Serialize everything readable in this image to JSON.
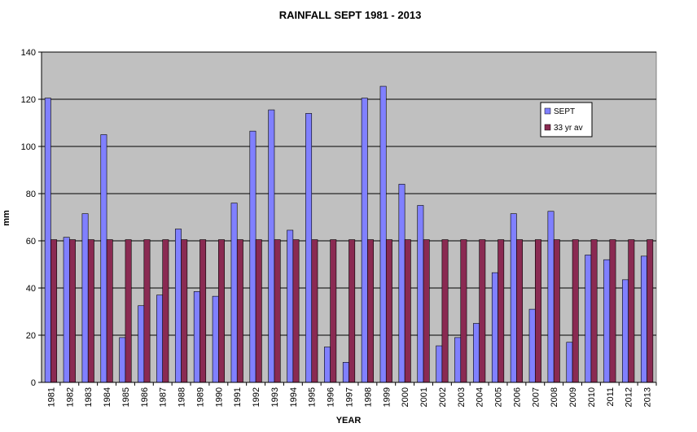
{
  "chart_data": {
    "type": "bar",
    "title": "RAINFALL SEPT 1981 - 2013",
    "xlabel": "YEAR",
    "ylabel": "mm",
    "ylim": [
      0,
      140
    ],
    "yticks": [
      "0",
      "20",
      "40",
      "60",
      "80",
      "100",
      "120",
      "140"
    ],
    "grid": true,
    "legend_position": "top-right",
    "categories": [
      "1981",
      "1982",
      "1983",
      "1984",
      "1985",
      "1986",
      "1987",
      "1988",
      "1989",
      "1990",
      "1991",
      "1992",
      "1993",
      "1994",
      "1995",
      "1996",
      "1997",
      "1998",
      "1999",
      "2000",
      "2001",
      "2002",
      "2003",
      "2004",
      "2005",
      "2006",
      "2007",
      "2008",
      "2009",
      "2010",
      "2011",
      "2012",
      "2013"
    ],
    "series": [
      {
        "name": "SEPT",
        "color": "#8080ff",
        "values": [
          120.5,
          61.5,
          71.5,
          105,
          19,
          32.5,
          37,
          65,
          38.5,
          36.5,
          76,
          106.5,
          115.5,
          64.5,
          114,
          15,
          8.5,
          120.5,
          125.5,
          84,
          75,
          15.5,
          19,
          25,
          46.5,
          71.5,
          31,
          72.5,
          17,
          54,
          52,
          43.5,
          53.5
        ]
      },
      {
        "name": "33 yr av",
        "color": "#8a2a52",
        "values": [
          60.5,
          60.5,
          60.5,
          60.5,
          60.5,
          60.5,
          60.5,
          60.5,
          60.5,
          60.5,
          60.5,
          60.5,
          60.5,
          60.5,
          60.5,
          60.5,
          60.5,
          60.5,
          60.5,
          60.5,
          60.5,
          60.5,
          60.5,
          60.5,
          60.5,
          60.5,
          60.5,
          60.5,
          60.5,
          60.5,
          60.5,
          60.5,
          60.5
        ]
      }
    ],
    "colors": {
      "plot_background": "#c0c0c0",
      "gridline": "#000000"
    }
  }
}
